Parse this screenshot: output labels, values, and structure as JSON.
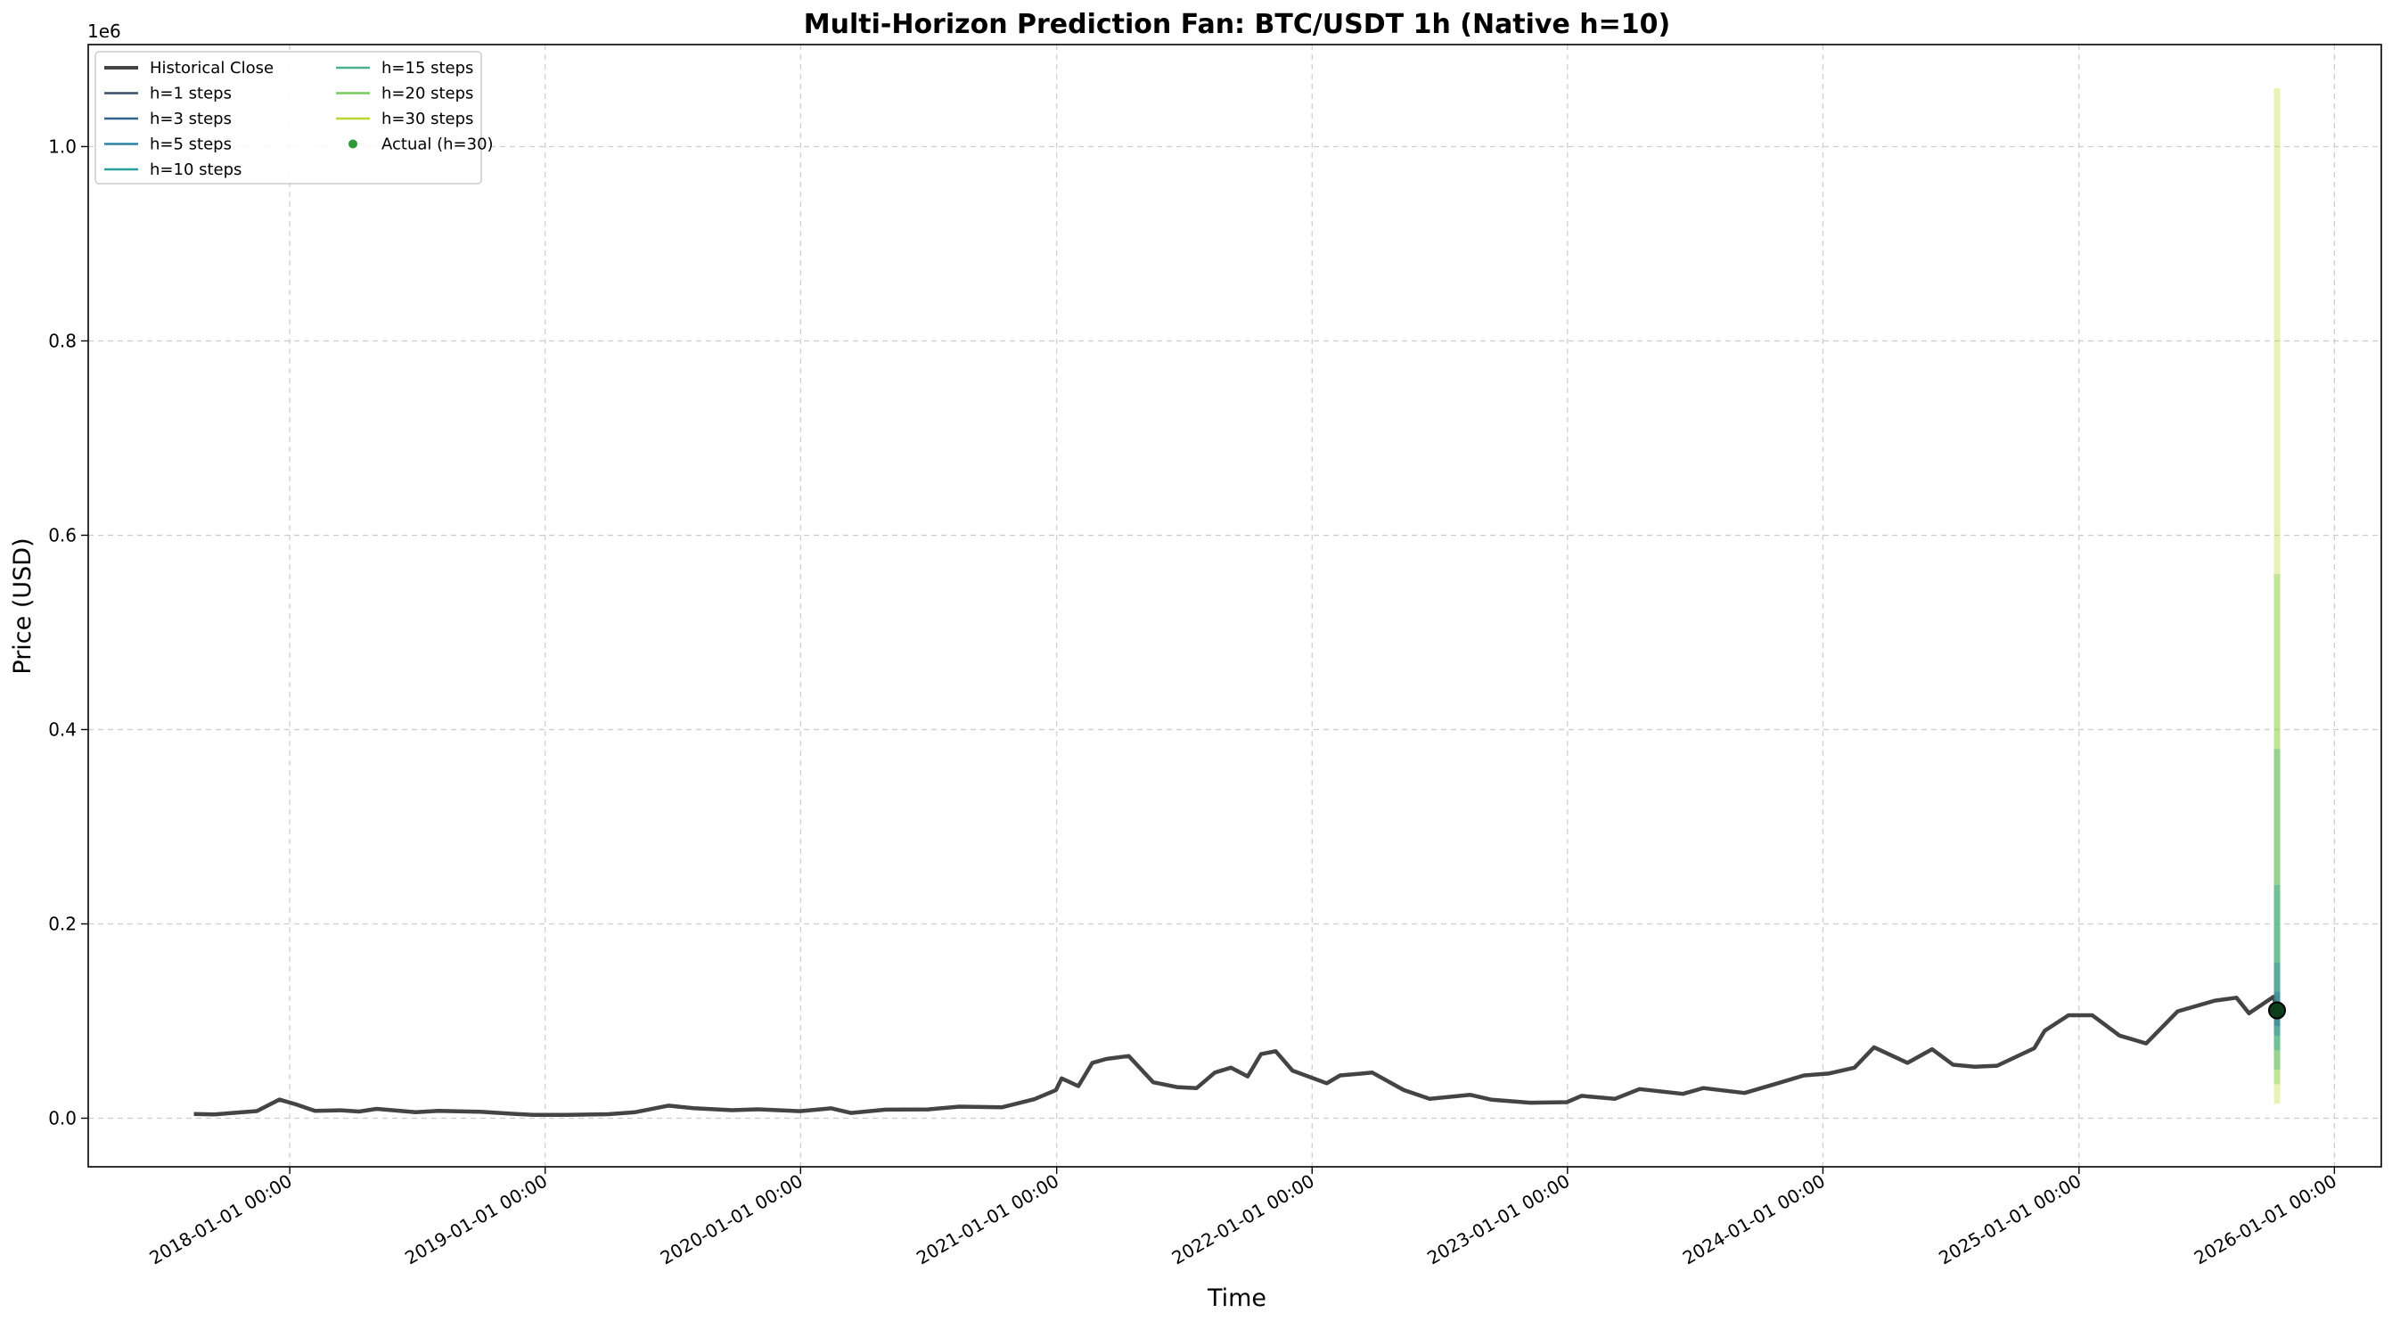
{
  "chart_data": {
    "type": "line",
    "title": "Multi-Horizon Prediction Fan: BTC/USDT 1h (Native h=10)",
    "xlabel": "Time",
    "ylabel": "Price (USD)",
    "y_offset_label": "1e6",
    "ylim": [
      -0.05,
      1.105
    ],
    "xlim": [
      "2017-03-19",
      "2026-03-09"
    ],
    "grid": true,
    "legend_position": "top-left",
    "x_ticks": [
      "2018-01-01 00:00",
      "2019-01-01 00:00",
      "2020-01-01 00:00",
      "2021-01-01 00:00",
      "2022-01-01 00:00",
      "2023-01-01 00:00",
      "2024-01-01 00:00",
      "2025-01-01 00:00",
      "2026-01-01 00:00"
    ],
    "y_ticks": [
      "0.0",
      "0.2",
      "0.4",
      "0.6",
      "0.8",
      "1.0"
    ],
    "historical": {
      "name": "Historical Close",
      "color": "#444444",
      "dates": [
        "2017-08-17",
        "2017-09-15",
        "2017-10-15",
        "2017-11-15",
        "2017-12-17",
        "2018-01-10",
        "2018-02-06",
        "2018-03-15",
        "2018-04-10",
        "2018-05-05",
        "2018-06-30",
        "2018-08-01",
        "2018-09-30",
        "2018-11-20",
        "2018-12-15",
        "2019-02-01",
        "2019-04-01",
        "2019-05-10",
        "2019-06-26",
        "2019-08-01",
        "2019-09-25",
        "2019-11-01",
        "2019-12-31",
        "2020-02-14",
        "2020-03-13",
        "2020-05-01",
        "2020-07-01",
        "2020-08-15",
        "2020-10-15",
        "2020-11-30",
        "2020-12-31",
        "2021-01-08",
        "2021-02-01",
        "2021-02-21",
        "2021-03-13",
        "2021-04-14",
        "2021-05-19",
        "2021-06-22",
        "2021-07-20",
        "2021-08-15",
        "2021-09-07",
        "2021-10-01",
        "2021-10-20",
        "2021-11-10",
        "2021-12-04",
        "2022-01-22",
        "2022-02-10",
        "2022-03-28",
        "2022-05-12",
        "2022-06-18",
        "2022-08-15",
        "2022-09-15",
        "2022-11-09",
        "2022-12-31",
        "2023-01-21",
        "2023-03-10",
        "2023-04-14",
        "2023-06-15",
        "2023-07-14",
        "2023-09-11",
        "2023-10-24",
        "2023-12-05",
        "2024-01-09",
        "2024-02-15",
        "2024-03-14",
        "2024-05-01",
        "2024-06-05",
        "2024-07-05",
        "2024-08-05",
        "2024-09-06",
        "2024-10-29",
        "2024-11-13",
        "2024-12-17",
        "2025-01-20",
        "2025-02-28",
        "2025-04-07",
        "2025-05-22",
        "2025-07-14",
        "2025-08-14",
        "2025-09-01",
        "2025-10-06",
        "2025-10-11"
      ],
      "values": [
        0.0043,
        0.0039,
        0.0056,
        0.0073,
        0.0192,
        0.0142,
        0.0076,
        0.0082,
        0.0069,
        0.0096,
        0.0062,
        0.0075,
        0.0066,
        0.0044,
        0.0035,
        0.0035,
        0.0041,
        0.0062,
        0.0129,
        0.0104,
        0.0083,
        0.0092,
        0.0072,
        0.0102,
        0.0054,
        0.0088,
        0.0091,
        0.0119,
        0.0113,
        0.0195,
        0.029,
        0.041,
        0.033,
        0.057,
        0.061,
        0.064,
        0.037,
        0.032,
        0.031,
        0.047,
        0.052,
        0.043,
        0.066,
        0.069,
        0.049,
        0.036,
        0.044,
        0.047,
        0.029,
        0.02,
        0.024,
        0.019,
        0.016,
        0.0165,
        0.023,
        0.02,
        0.03,
        0.025,
        0.031,
        0.026,
        0.035,
        0.044,
        0.046,
        0.052,
        0.073,
        0.057,
        0.071,
        0.055,
        0.053,
        0.054,
        0.072,
        0.09,
        0.106,
        0.106,
        0.085,
        0.077,
        0.11,
        0.121,
        0.124,
        0.108,
        0.125,
        0.112
      ]
    },
    "forecast_origin": "2025-10-11",
    "horizons": [
      {
        "name": "h=1 steps",
        "color": "#3b4f6b",
        "center": 0.112,
        "low": 0.105,
        "high": 0.12
      },
      {
        "name": "h=3 steps",
        "color": "#30648c",
        "center": 0.112,
        "low": 0.095,
        "high": 0.13
      },
      {
        "name": "h=5 steps",
        "color": "#2b84a5",
        "center": 0.112,
        "low": 0.085,
        "high": 0.16
      },
      {
        "name": "h=10 steps",
        "color": "#2ba09c",
        "center": 0.112,
        "low": 0.07,
        "high": 0.24
      },
      {
        "name": "h=15 steps",
        "color": "#4cb28e",
        "center": 0.112,
        "low": 0.05,
        "high": 0.38
      },
      {
        "name": "h=20 steps",
        "color": "#78cc5c",
        "center": 0.112,
        "low": 0.035,
        "high": 0.56
      },
      {
        "name": "h=30 steps",
        "color": "#bcd62e",
        "center": 0.112,
        "low": 0.015,
        "high": 1.06
      }
    ],
    "actual": {
      "name": "Actual (h=30)",
      "color": "#2e9a3a",
      "date": "2025-10-11",
      "value": 0.111
    }
  }
}
